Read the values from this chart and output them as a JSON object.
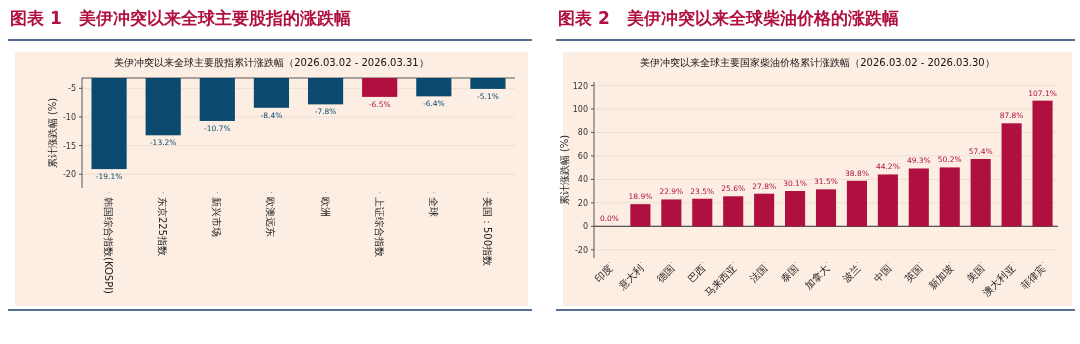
{
  "chart_data": [
    {
      "type": "bar",
      "title": "图表 1　美伊冲突以来全球主要股指的涨跌幅",
      "subtitle": "美伊冲突以来全球主要股指累计涨跌幅（2026.03.02 - 2026.03.31）",
      "ylabel": "累计涨跌幅 (%)",
      "categories": [
        "韩国综合指数(KOSPI)",
        "东京225指数",
        "新兴市场",
        "欧澳远东",
        "欧洲",
        "上证综合指数",
        "全球",
        "美国：500指数"
      ],
      "values": [
        -19.1,
        -13.2,
        -10.7,
        -8.4,
        -7.8,
        -6.5,
        -6.4,
        -5.1
      ],
      "value_labels": [
        "-19.1%",
        "-13.2%",
        "-10.7%",
        "-8.4%",
        "-7.8%",
        "-6.5%",
        "-6.4%",
        "-5.1%"
      ],
      "colors": [
        "#0b4a6e",
        "#0b4a6e",
        "#0b4a6e",
        "#0b4a6e",
        "#0b4a6e",
        "#b0103f",
        "#0b4a6e",
        "#0b4a6e"
      ],
      "ylim": [
        -22.4,
        -3.2
      ],
      "yticks": [
        -20,
        -15,
        -10,
        -5
      ],
      "grid": "y"
    },
    {
      "type": "bar",
      "title": "图表 2　美伊冲突以来全球柴油价格的涨跌幅",
      "subtitle": "美伊冲突以来全球主要国家柴油价格累计涨跌幅（2026.03.02 - 2026.03.30）",
      "ylabel": "累计涨跌幅 (%)",
      "categories": [
        "印度",
        "意大利",
        "德国",
        "巴西",
        "马来西亚",
        "法国",
        "泰国",
        "加拿大",
        "波兰",
        "中国",
        "英国",
        "新加坡",
        "美国",
        "澳大利亚",
        "菲律宾"
      ],
      "values": [
        0.0,
        18.9,
        22.9,
        23.5,
        25.6,
        27.8,
        30.1,
        31.5,
        38.8,
        44.2,
        49.3,
        50.2,
        57.4,
        87.8,
        107.1
      ],
      "value_labels": [
        "0.0%",
        "18.9%",
        "22.9%",
        "23.5%",
        "25.6%",
        "27.8%",
        "30.1%",
        "31.5%",
        "38.8%",
        "44.2%",
        "49.3%",
        "50.2%",
        "57.4%",
        "87.8%",
        "107.1%"
      ],
      "colors": [
        "#b0103f",
        "#b0103f",
        "#b0103f",
        "#b0103f",
        "#b0103f",
        "#b0103f",
        "#b0103f",
        "#b0103f",
        "#b0103f",
        "#b0103f",
        "#b0103f",
        "#b0103f",
        "#b0103f",
        "#b0103f",
        "#b0103f"
      ],
      "ylim": [
        -27,
        123
      ],
      "yticks": [
        -20,
        0,
        20,
        40,
        60,
        80,
        100,
        120
      ],
      "grid": "y",
      "ref_lines": [
        {
          "axis": "y",
          "value": 0,
          "color": "#555555"
        }
      ]
    }
  ]
}
